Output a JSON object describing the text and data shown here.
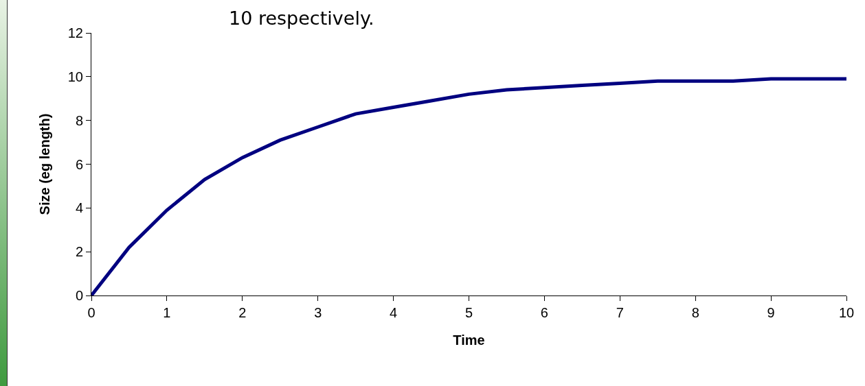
{
  "chart_data": {
    "type": "line",
    "xlabel": "Time",
    "ylabel": "Size (eg length)",
    "annotations": [
      "10 respectively."
    ],
    "x": [
      0,
      0.5,
      1,
      1.5,
      2,
      2.5,
      3,
      3.5,
      4,
      4.5,
      5,
      5.5,
      6,
      6.5,
      7,
      7.5,
      8,
      8.5,
      9,
      9.5,
      10
    ],
    "series": [
      {
        "color": "#000080",
        "values": [
          0,
          2.2,
          3.9,
          5.3,
          6.3,
          7.1,
          7.7,
          8.3,
          8.6,
          8.9,
          9.2,
          9.4,
          9.5,
          9.6,
          9.7,
          9.8,
          9.8,
          9.8,
          9.9,
          9.9,
          9.9
        ]
      }
    ],
    "xlim": [
      0,
      10
    ],
    "xticks": [
      0,
      1,
      2,
      3,
      4,
      5,
      6,
      7,
      8,
      9,
      10
    ],
    "ylim": [
      0,
      12
    ],
    "yticks": [
      0,
      2,
      4,
      6,
      8,
      10,
      12
    ],
    "marker": "none",
    "line_style": "solid"
  }
}
